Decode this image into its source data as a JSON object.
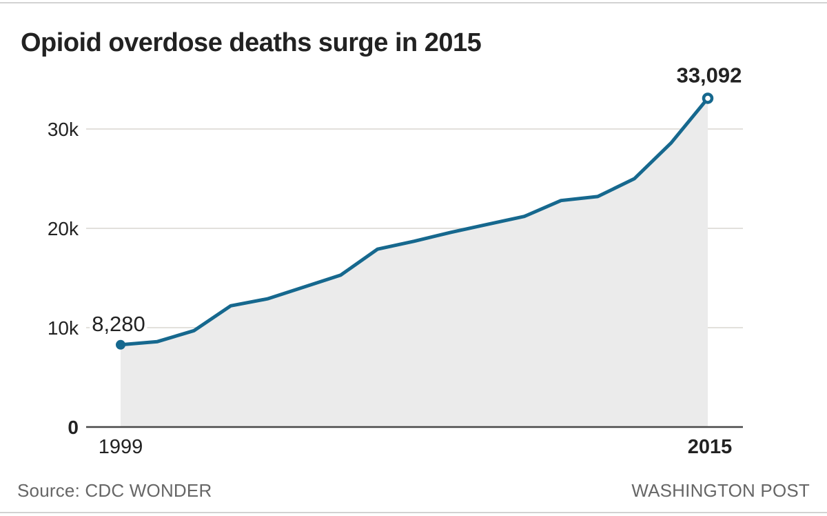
{
  "colors": {
    "line": "#16688e",
    "area_fill": "#ebebeb",
    "gridline": "#d8d6d0",
    "axis": "#474747",
    "text_dark": "#222222",
    "text_muted": "#666666"
  },
  "footer": {
    "source": "Source: CDC WONDER",
    "attribution": "WASHINGTON POST"
  },
  "chart_data": {
    "type": "area",
    "title": "Opioid overdose deaths surge in 2015",
    "xlabel": "",
    "ylabel": "",
    "x": [
      1999,
      2000,
      2001,
      2002,
      2003,
      2004,
      2005,
      2006,
      2007,
      2008,
      2009,
      2010,
      2011,
      2012,
      2013,
      2014,
      2015
    ],
    "values": [
      8280,
      8600,
      9700,
      12200,
      12900,
      14100,
      15300,
      17900,
      18700,
      19600,
      20400,
      21200,
      22800,
      23200,
      25000,
      28600,
      33092
    ],
    "xlim": [
      1999,
      2015
    ],
    "ylim": [
      0,
      34000
    ],
    "grid": true,
    "legend": false,
    "y_ticks": [
      {
        "value": 0,
        "label": "0",
        "bold": true
      },
      {
        "value": 10000,
        "label": "10k",
        "bold": false
      },
      {
        "value": 20000,
        "label": "20k",
        "bold": false
      },
      {
        "value": 30000,
        "label": "30k",
        "bold": false
      }
    ],
    "x_ticks": [
      {
        "value": 1999,
        "label": "1999",
        "bold": false
      },
      {
        "value": 2015,
        "label": "2015",
        "bold": true
      }
    ],
    "annotations": {
      "start": "8,280",
      "end": "33,092"
    }
  }
}
